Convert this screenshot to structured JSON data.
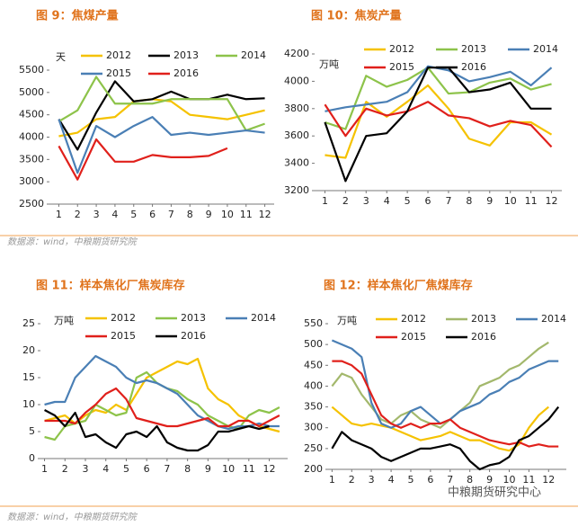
{
  "chart_data": [
    {
      "type": "line",
      "title": "图 9：焦煤产量",
      "unit": "天",
      "x": [
        1,
        2,
        3,
        4,
        5,
        6,
        7,
        8,
        9,
        10,
        11,
        12
      ],
      "xlim": [
        0.5,
        12.5
      ],
      "xticks": [
        1,
        2,
        3,
        4,
        5,
        6,
        7,
        8,
        9,
        10,
        11,
        12
      ],
      "ylim": [
        2500,
        5500
      ],
      "yticks": [
        2500,
        3000,
        3500,
        4000,
        4500,
        5000,
        5500
      ],
      "series": [
        {
          "name": "2012",
          "color": "#f5c200",
          "values": [
            4020,
            4100,
            4400,
            4450,
            4800,
            4850,
            4800,
            4500,
            4450,
            4400,
            4500,
            4600
          ]
        },
        {
          "name": "2013",
          "color": "#000000",
          "values": [
            4400,
            3720,
            4550,
            5250,
            4800,
            4850,
            5020,
            4850,
            4850,
            4950,
            4850,
            4870
          ]
        },
        {
          "name": "2014",
          "color": "#8dc34a",
          "values": [
            4350,
            4600,
            5350,
            4750,
            4750,
            4750,
            4850,
            4850,
            4850,
            4850,
            4150,
            4300
          ]
        },
        {
          "name": "2015",
          "color": "#4a7fb5",
          "values": [
            4400,
            3200,
            4250,
            4000,
            4250,
            4450,
            4050,
            4100,
            4050,
            4100,
            4150,
            4100
          ]
        },
        {
          "name": "2016",
          "color": "#e0201b",
          "values": [
            3800,
            3050,
            3950,
            3450,
            3450,
            3600,
            3550,
            3550,
            3580,
            3750,
            null,
            null
          ]
        }
      ]
    },
    {
      "type": "line",
      "title": "图 10：焦炭产量",
      "unit": "万吨",
      "x": [
        1,
        2,
        3,
        4,
        5,
        6,
        7,
        8,
        9,
        10,
        11,
        12
      ],
      "xlim": [
        0.5,
        12.5
      ],
      "xticks": [
        1,
        2,
        3,
        4,
        5,
        6,
        7,
        8,
        9,
        10,
        11,
        12
      ],
      "ylim": [
        3200,
        4200
      ],
      "yticks": [
        3200,
        3400,
        3600,
        3800,
        4000,
        4200
      ],
      "series": [
        {
          "name": "2012",
          "color": "#f5c200",
          "values": [
            3460,
            3440,
            3850,
            3740,
            3850,
            3970,
            3800,
            3580,
            3530,
            3700,
            3700,
            3610
          ]
        },
        {
          "name": "2013",
          "color": "#8dc34a",
          "values": [
            3700,
            3650,
            4040,
            3960,
            4010,
            4100,
            3910,
            3920,
            3990,
            4020,
            3940,
            3980
          ]
        },
        {
          "name": "2014",
          "color": "#4a7fb5",
          "values": [
            3780,
            3810,
            3830,
            3850,
            3920,
            4110,
            4080,
            4000,
            4030,
            4070,
            3970,
            4100
          ]
        },
        {
          "name": "2015",
          "color": "#e0201b",
          "values": [
            3830,
            3600,
            3800,
            3750,
            3780,
            3850,
            3750,
            3730,
            3670,
            3710,
            3680,
            3520
          ]
        },
        {
          "name": "2016",
          "color": "#000000",
          "values": [
            3700,
            3270,
            3600,
            3620,
            3780,
            4100,
            4100,
            3920,
            3940,
            3990,
            3800,
            3800
          ]
        }
      ]
    },
    {
      "type": "line",
      "title": "图 11：样本焦化厂焦炭库存",
      "unit": "万吨",
      "x": [
        1,
        1.5,
        2,
        2.5,
        3,
        3.5,
        4,
        4.5,
        5,
        5.5,
        6,
        6.5,
        7,
        7.5,
        8,
        8.5,
        9,
        9.5,
        10,
        10.5,
        11,
        11.5,
        12,
        12.5
      ],
      "xlim": [
        0.8,
        12.9
      ],
      "xticks": [
        1,
        2,
        3,
        4,
        5,
        6,
        7,
        8,
        9,
        10,
        11,
        12
      ],
      "ylim": [
        0,
        25
      ],
      "yticks": [
        0,
        5,
        10,
        15,
        20,
        25
      ],
      "series": [
        {
          "name": "2012",
          "color": "#f5c200",
          "values": [
            7,
            7.5,
            8,
            6.5,
            8,
            9,
            8.5,
            10,
            9,
            12,
            15,
            16,
            17,
            18,
            17.5,
            18.5,
            13,
            11,
            10,
            8,
            7,
            6,
            5.5,
            5
          ]
        },
        {
          "name": "2013",
          "color": "#8dc34a",
          "values": [
            4,
            3.5,
            6,
            6.5,
            7,
            10,
            9,
            8,
            8.5,
            15,
            16,
            14,
            13,
            12.5,
            11,
            10,
            8,
            7,
            6,
            5.5,
            8,
            9,
            8.5,
            9.5
          ]
        },
        {
          "name": "2014",
          "color": "#4a7fb5",
          "values": [
            10,
            10.5,
            10.5,
            15,
            17,
            19,
            18,
            17,
            15,
            14,
            14.5,
            14,
            13,
            12,
            10,
            8,
            7,
            6,
            5.5,
            6,
            6,
            6.5,
            6,
            6
          ]
        },
        {
          "name": "2015",
          "color": "#e0201b",
          "values": [
            7,
            7,
            7,
            6.5,
            8.5,
            10,
            12,
            13,
            11,
            7.5,
            7,
            6.5,
            6,
            6,
            6.5,
            7,
            7.5,
            6,
            6,
            7,
            7,
            6,
            7,
            8
          ]
        },
        {
          "name": "2016",
          "color": "#000000",
          "values": [
            9,
            8,
            6,
            8.5,
            4,
            4.5,
            3,
            2,
            4.5,
            5,
            4,
            6,
            3,
            2,
            1.5,
            1.5,
            2.5,
            5,
            5,
            5.5,
            6,
            5.5,
            6,
            null
          ]
        }
      ]
    },
    {
      "type": "line",
      "title": "图 12：样本焦化厂焦煤库存",
      "unit": "万吨",
      "x": [
        1,
        1.5,
        2,
        2.5,
        3,
        3.5,
        4,
        4.5,
        5,
        5.5,
        6,
        6.5,
        7,
        7.5,
        8,
        8.5,
        9,
        9.5,
        10,
        10.5,
        11,
        11.5,
        12,
        12.5
      ],
      "xlim": [
        0.8,
        12.9
      ],
      "xticks": [
        1,
        2,
        3,
        4,
        5,
        6,
        7,
        8,
        9,
        10,
        11,
        12
      ],
      "ylim": [
        200,
        550
      ],
      "yticks": [
        200,
        250,
        300,
        350,
        400,
        450,
        500,
        550
      ],
      "series": [
        {
          "name": "2012",
          "color": "#f5c200",
          "values": [
            350,
            330,
            310,
            305,
            310,
            305,
            300,
            290,
            280,
            270,
            275,
            280,
            290,
            280,
            270,
            270,
            260,
            250,
            245,
            260,
            300,
            330,
            350,
            null
          ]
        },
        {
          "name": "2013",
          "color": "#a3b86c",
          "values": [
            400,
            430,
            420,
            380,
            350,
            320,
            310,
            330,
            340,
            320,
            310,
            300,
            320,
            340,
            360,
            400,
            410,
            420,
            440,
            450,
            470,
            490,
            505,
            null
          ]
        },
        {
          "name": "2014",
          "color": "#4a7fb5",
          "values": [
            510,
            500,
            490,
            470,
            360,
            310,
            300,
            310,
            340,
            350,
            330,
            310,
            320,
            340,
            350,
            360,
            380,
            390,
            410,
            420,
            440,
            450,
            460,
            460
          ]
        },
        {
          "name": "2015",
          "color": "#e0201b",
          "values": [
            460,
            460,
            450,
            430,
            380,
            330,
            310,
            300,
            310,
            300,
            310,
            310,
            320,
            300,
            290,
            280,
            270,
            265,
            260,
            265,
            255,
            260,
            255,
            255
          ]
        },
        {
          "name": "2016",
          "color": "#000000",
          "values": [
            250,
            290,
            270,
            260,
            250,
            230,
            220,
            230,
            240,
            250,
            250,
            255,
            260,
            250,
            220,
            200,
            210,
            215,
            230,
            270,
            280,
            300,
            320,
            350
          ]
        }
      ]
    }
  ],
  "sources": [
    "数据源：wind，中粮期货研究院",
    "数据源：wind，中粮期货研究院"
  ],
  "watermark": "中粮期货研究中心"
}
